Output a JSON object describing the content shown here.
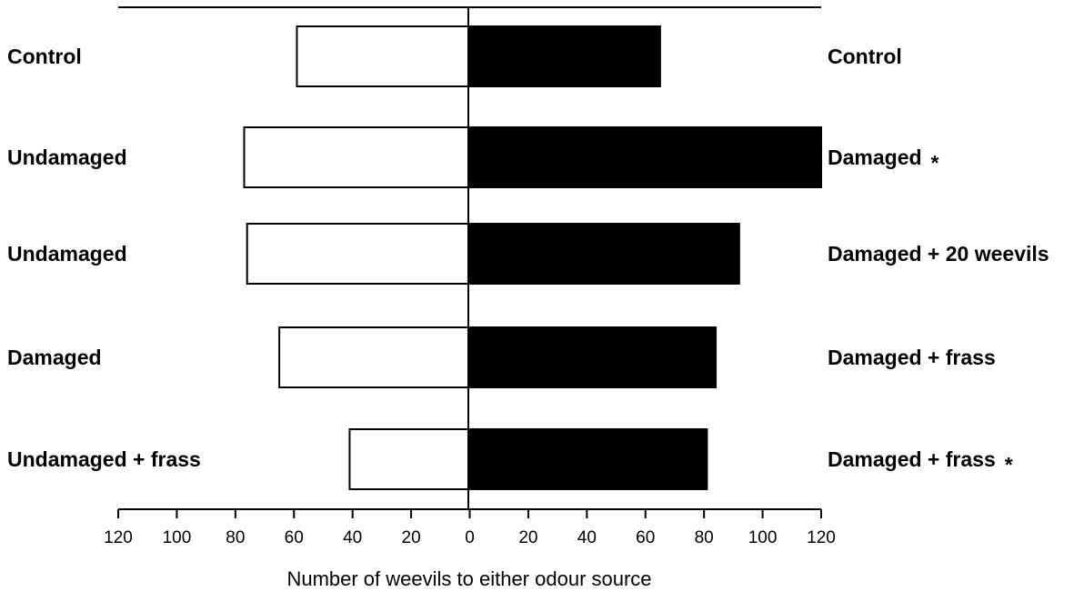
{
  "chart_data": {
    "type": "bar",
    "orientation": "horizontal-diverging",
    "xlabel": "Number of weevils to either odour source",
    "xlim": [
      -120,
      120
    ],
    "x_ticks": [
      -120,
      -100,
      -80,
      -60,
      -40,
      -20,
      0,
      20,
      40,
      60,
      80,
      100,
      120
    ],
    "x_tick_labels": [
      "120",
      "100",
      "80",
      "60",
      "40",
      "20",
      "0",
      "20",
      "40",
      "60",
      "80",
      "100",
      "120"
    ],
    "left_categories": [
      "Control",
      "Undamaged",
      "Undamaged",
      "Damaged",
      "Undamaged + frass"
    ],
    "right_categories": [
      "Control",
      "Damaged",
      "Damaged + 20 weevils",
      "Damaged + frass",
      "Damaged + frass"
    ],
    "significance": [
      "",
      "*",
      "",
      "",
      "*"
    ],
    "series": [
      {
        "side": "left",
        "color": "#ffffff",
        "values": [
          59,
          77,
          76,
          65,
          41
        ]
      },
      {
        "side": "right",
        "color": "#000000",
        "values": [
          65,
          120,
          92,
          84,
          81
        ]
      }
    ],
    "grid": false,
    "legend": "none"
  }
}
